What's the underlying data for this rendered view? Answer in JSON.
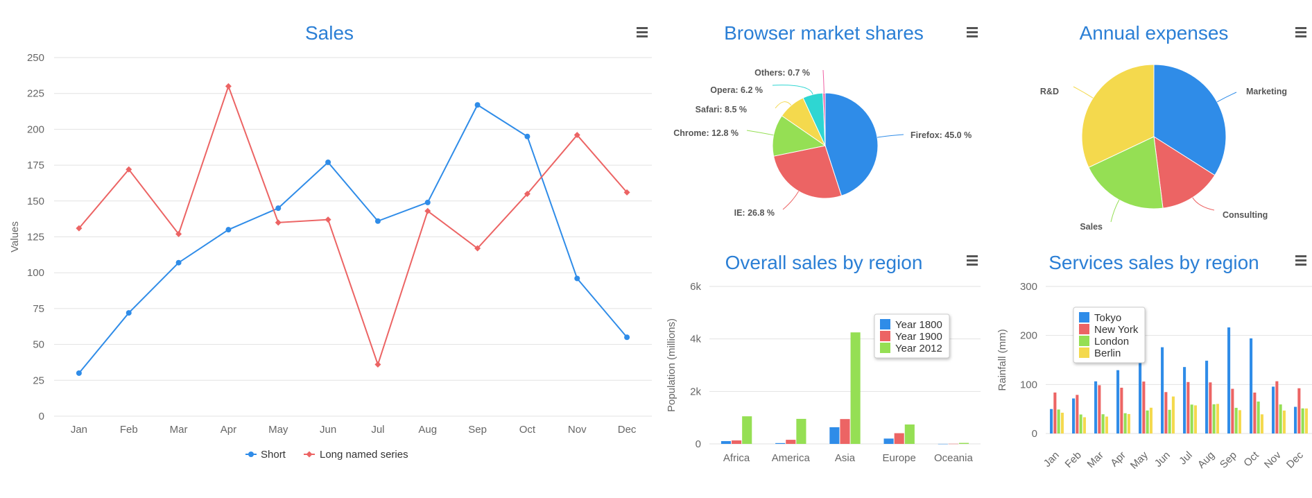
{
  "colors": {
    "title": "#2b7fd5",
    "blue": "#2f8ce8",
    "red": "#ec6464",
    "green": "#95df54",
    "yellow": "#f4d94d",
    "cyan": "#2ed6d2",
    "pink": "#ef5ea2"
  },
  "menu_icon": "hamburger-menu-icon",
  "chart_data": [
    {
      "id": "sales",
      "type": "line",
      "title": "Sales",
      "ylabel": "Values",
      "ylim": [
        0,
        250
      ],
      "yticks": [
        0,
        25,
        50,
        75,
        100,
        125,
        150,
        175,
        200,
        225,
        250
      ],
      "categories": [
        "Jan",
        "Feb",
        "Mar",
        "Apr",
        "May",
        "Jun",
        "Jul",
        "Aug",
        "Sep",
        "Oct",
        "Nov",
        "Dec"
      ],
      "grid": true,
      "legend": "bottom-center",
      "series": [
        {
          "name": "Short",
          "color": "#2f8ce8",
          "marker": "circle",
          "values": [
            30,
            72,
            107,
            130,
            145,
            177,
            136,
            149,
            217,
            195,
            96,
            55
          ]
        },
        {
          "name": "Long named series",
          "color": "#ec6464",
          "marker": "diamond",
          "values": [
            131,
            172,
            127,
            230,
            135,
            137,
            36,
            143,
            117,
            155,
            196,
            156
          ]
        }
      ]
    },
    {
      "id": "browser",
      "type": "pie",
      "title": "Browser market shares",
      "slices": [
        {
          "name": "Firefox",
          "value": 45.0,
          "label": "Firefox: 45.0 %",
          "color": "#2f8ce8"
        },
        {
          "name": "IE",
          "value": 26.8,
          "label": "IE: 26.8 %",
          "color": "#ec6464"
        },
        {
          "name": "Chrome",
          "value": 12.8,
          "label": "Chrome: 12.8 %",
          "color": "#95df54"
        },
        {
          "name": "Safari",
          "value": 8.5,
          "label": "Safari: 8.5 %",
          "color": "#f4d94d"
        },
        {
          "name": "Opera",
          "value": 6.2,
          "label": "Opera: 6.2 %",
          "color": "#2ed6d2"
        },
        {
          "name": "Others",
          "value": 0.7,
          "label": "Others: 0.7 %",
          "color": "#ef5ea2"
        }
      ]
    },
    {
      "id": "expenses",
      "type": "pie",
      "title": "Annual expenses",
      "slices": [
        {
          "name": "Marketing",
          "value": 34,
          "label": "Marketing",
          "color": "#2f8ce8"
        },
        {
          "name": "Consulting",
          "value": 14,
          "label": "Consulting",
          "color": "#ec6464"
        },
        {
          "name": "Sales",
          "value": 20,
          "label": "Sales",
          "color": "#95df54"
        },
        {
          "name": "R&D",
          "value": 32,
          "label": "R&D",
          "color": "#f4d94d"
        }
      ]
    },
    {
      "id": "overall",
      "type": "bar",
      "title": "Overall sales by region",
      "ylabel": "Population (millions)",
      "ylim": [
        0,
        6000
      ],
      "yticks": [
        0,
        2000,
        4000,
        6000
      ],
      "ytick_labels": [
        "0",
        "2k",
        "4k",
        "6k"
      ],
      "categories": [
        "Africa",
        "America",
        "Asia",
        "Europe",
        "Oceania"
      ],
      "grid": true,
      "legend": "top-right",
      "series": [
        {
          "name": "Year 1800",
          "color": "#2f8ce8",
          "values": [
            107,
            31,
            635,
            203,
            2
          ]
        },
        {
          "name": "Year 1900",
          "color": "#ec6464",
          "values": [
            133,
            156,
            947,
            408,
            6
          ]
        },
        {
          "name": "Year 2012",
          "color": "#95df54",
          "values": [
            1052,
            954,
            4250,
            740,
            38
          ]
        }
      ]
    },
    {
      "id": "services",
      "type": "bar",
      "title": "Services sales by region",
      "ylabel": "Rainfall (mm)",
      "ylim": [
        0,
        300
      ],
      "yticks": [
        0,
        100,
        200,
        300
      ],
      "ytick_labels": [
        "0",
        "100",
        "200",
        "300"
      ],
      "categories": [
        "Jan",
        "Feb",
        "Mar",
        "Apr",
        "May",
        "Jun",
        "Jul",
        "Aug",
        "Sep",
        "Oct",
        "Nov",
        "Dec"
      ],
      "grid": true,
      "legend": "top-left",
      "series": [
        {
          "name": "Tokyo",
          "color": "#2f8ce8",
          "values": [
            49.9,
            71.5,
            106.4,
            129.2,
            144.0,
            176.0,
            135.6,
            148.5,
            216.4,
            194.1,
            95.6,
            54.4
          ]
        },
        {
          "name": "New York",
          "color": "#ec6464",
          "values": [
            83.6,
            78.8,
            98.5,
            93.4,
            106.0,
            84.5,
            105.0,
            104.3,
            91.2,
            83.5,
            106.6,
            92.3
          ]
        },
        {
          "name": "London",
          "color": "#95df54",
          "values": [
            48.9,
            38.8,
            39.3,
            41.4,
            47.0,
            48.3,
            59.0,
            59.6,
            52.4,
            65.2,
            59.3,
            51.2
          ]
        },
        {
          "name": "Berlin",
          "color": "#f4d94d",
          "values": [
            42.4,
            33.2,
            34.5,
            39.7,
            52.6,
            75.5,
            57.4,
            60.4,
            47.6,
            39.1,
            46.8,
            51.1
          ]
        }
      ]
    }
  ]
}
